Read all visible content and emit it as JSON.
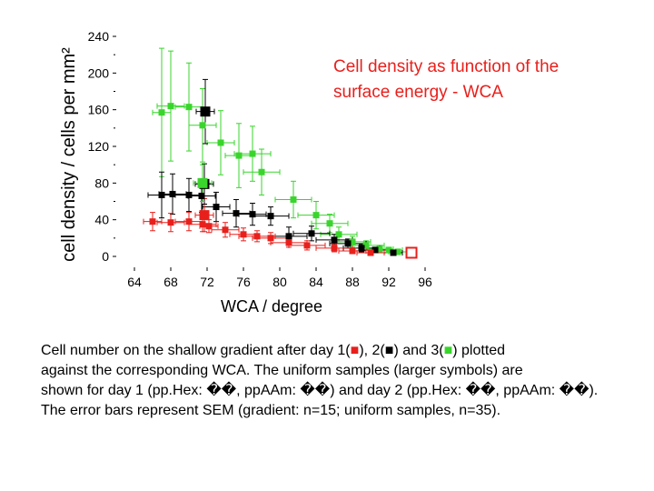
{
  "chart_data": {
    "type": "scatter",
    "title": "Cell density as function of the surface energy - WCA",
    "xlabel": "WCA / degree",
    "ylabel": "cell density / cells per mm²",
    "xlim": [
      64,
      96
    ],
    "ylim": [
      0,
      240
    ],
    "x_ticks": [
      "64",
      "68",
      "72",
      "76",
      "80",
      "84",
      "88",
      "92",
      "96"
    ],
    "y_ticks": [
      "0",
      "40",
      "80",
      "120",
      "160",
      "200",
      "240"
    ],
    "grid": false,
    "series": [
      {
        "color": "#39d52c",
        "marker": "square",
        "points": [
          {
            "x": 67.0,
            "y": 157,
            "xerr": 1.0,
            "yerr": 70
          },
          {
            "x": 68.0,
            "y": 164,
            "xerr": 1.5,
            "yerr": 60
          },
          {
            "x": 70.0,
            "y": 163,
            "xerr": 1.5,
            "yerr": 48
          },
          {
            "x": 71.5,
            "y": 143,
            "xerr": 1.5,
            "yerr": 40
          },
          {
            "x": 73.5,
            "y": 124,
            "xerr": 1.5,
            "yerr": 35
          },
          {
            "x": 75.5,
            "y": 110,
            "xerr": 1.5,
            "yerr": 35
          },
          {
            "x": 77.0,
            "y": 112,
            "xerr": 2.0,
            "yerr": 30
          },
          {
            "x": 78.0,
            "y": 92,
            "xerr": 2.0,
            "yerr": 25
          },
          {
            "x": 81.5,
            "y": 62,
            "xerr": 2.0,
            "yerr": 20
          },
          {
            "x": 84.0,
            "y": 45,
            "xerr": 2.0,
            "yerr": 15
          },
          {
            "x": 85.5,
            "y": 36,
            "xerr": 2.0,
            "yerr": 10
          },
          {
            "x": 86.5,
            "y": 24,
            "xerr": 2.0,
            "yerr": 8
          },
          {
            "x": 88.0,
            "y": 16,
            "xerr": 2.0,
            "yerr": 6
          },
          {
            "x": 89.5,
            "y": 12,
            "xerr": 2.0,
            "yerr": 5
          },
          {
            "x": 91.0,
            "y": 8,
            "xerr": 1.5,
            "yerr": 4
          },
          {
            "x": 92.0,
            "y": 7,
            "xerr": 1.5,
            "yerr": 3
          },
          {
            "x": 93.0,
            "y": 5,
            "xerr": 1.0,
            "yerr": 3
          }
        ]
      },
      {
        "color": "#000000",
        "marker": "square",
        "points": [
          {
            "x": 67.0,
            "y": 67,
            "xerr": 1.5,
            "yerr": 25
          },
          {
            "x": 68.2,
            "y": 68,
            "xerr": 1.5,
            "yerr": 22
          },
          {
            "x": 70.0,
            "y": 67,
            "xerr": 1.5,
            "yerr": 18
          },
          {
            "x": 71.4,
            "y": 66,
            "xerr": 1.5,
            "yerr": 18
          },
          {
            "x": 73.0,
            "y": 54,
            "xerr": 1.5,
            "yerr": 16
          },
          {
            "x": 75.2,
            "y": 47,
            "xerr": 1.5,
            "yerr": 15
          },
          {
            "x": 77.0,
            "y": 46,
            "xerr": 1.5,
            "yerr": 12
          },
          {
            "x": 79.0,
            "y": 44,
            "xerr": 2.0,
            "yerr": 10
          },
          {
            "x": 81.0,
            "y": 22,
            "xerr": 2.0,
            "yerr": 10
          },
          {
            "x": 83.5,
            "y": 25,
            "xerr": 2.0,
            "yerr": 8
          },
          {
            "x": 86.0,
            "y": 18,
            "xerr": 2.0,
            "yerr": 6
          },
          {
            "x": 87.5,
            "y": 14,
            "xerr": 2.0,
            "yerr": 5
          },
          {
            "x": 89.0,
            "y": 9,
            "xerr": 2.0,
            "yerr": 4
          },
          {
            "x": 90.5,
            "y": 7,
            "xerr": 1.5,
            "yerr": 3
          },
          {
            "x": 92.5,
            "y": 4,
            "xerr": 1.0,
            "yerr": 2
          }
        ]
      },
      {
        "color": "#e8201c",
        "marker": "square",
        "points": [
          {
            "x": 66.0,
            "y": 38,
            "xerr": 1.0,
            "yerr": 10
          },
          {
            "x": 68.0,
            "y": 37,
            "xerr": 1.5,
            "yerr": 10
          },
          {
            "x": 70.0,
            "y": 38,
            "xerr": 1.5,
            "yerr": 10
          },
          {
            "x": 71.5,
            "y": 35,
            "xerr": 1.5,
            "yerr": 8
          },
          {
            "x": 72.2,
            "y": 33,
            "xerr": 1.0,
            "yerr": 7
          },
          {
            "x": 74.0,
            "y": 29,
            "xerr": 1.5,
            "yerr": 8
          },
          {
            "x": 76.0,
            "y": 24,
            "xerr": 1.5,
            "yerr": 7
          },
          {
            "x": 77.5,
            "y": 22,
            "xerr": 2.0,
            "yerr": 6
          },
          {
            "x": 79.0,
            "y": 20,
            "xerr": 2.0,
            "yerr": 6
          },
          {
            "x": 81.0,
            "y": 15,
            "xerr": 2.0,
            "yerr": 5
          },
          {
            "x": 83.0,
            "y": 12,
            "xerr": 2.0,
            "yerr": 5
          },
          {
            "x": 86.0,
            "y": 9,
            "xerr": 2.0,
            "yerr": 4
          },
          {
            "x": 88.0,
            "y": 6,
            "xerr": 1.5,
            "yerr": 3
          },
          {
            "x": 90.0,
            "y": 4,
            "xerr": 1.5,
            "yerr": 3
          }
        ]
      }
    ],
    "uniform_samples": [
      {
        "color": "#e8201c",
        "x": 71.7,
        "y": 45,
        "xerr": 1.0,
        "yerr": 18
      },
      {
        "color": "#000000",
        "x": 71.7,
        "y": 79,
        "xerr": 1.0,
        "yerr": 22
      },
      {
        "color": "#39d52c",
        "x": 71.5,
        "y": 80,
        "xerr": 1.0,
        "yerr": 20
      },
      {
        "color": "#000000",
        "x": 71.8,
        "y": 158,
        "xerr": 1.0,
        "yerr": 35
      },
      {
        "color": "#e8201c",
        "x": 94.5,
        "y": 4,
        "xerr": 0.5,
        "yerr": 2
      }
    ]
  },
  "caption": {
    "line1_a": "Cell number on the shallow gradient after day 1(",
    "line1_b": "), 2(",
    "line1_c": ") and 3(",
    "line1_d": ") plotted",
    "glyph": "■",
    "line2": "against the corresponding WCA. The uniform samples (larger symbols) are",
    "line3": "shown for day 1 (pp.Hex: ��, ppAAm: ��) and day 2 (pp.Hex: ��, ppAAm: ��).",
    "line4": "The error bars represent SEM (gradient: n=15; uniform samples, n=35)."
  }
}
